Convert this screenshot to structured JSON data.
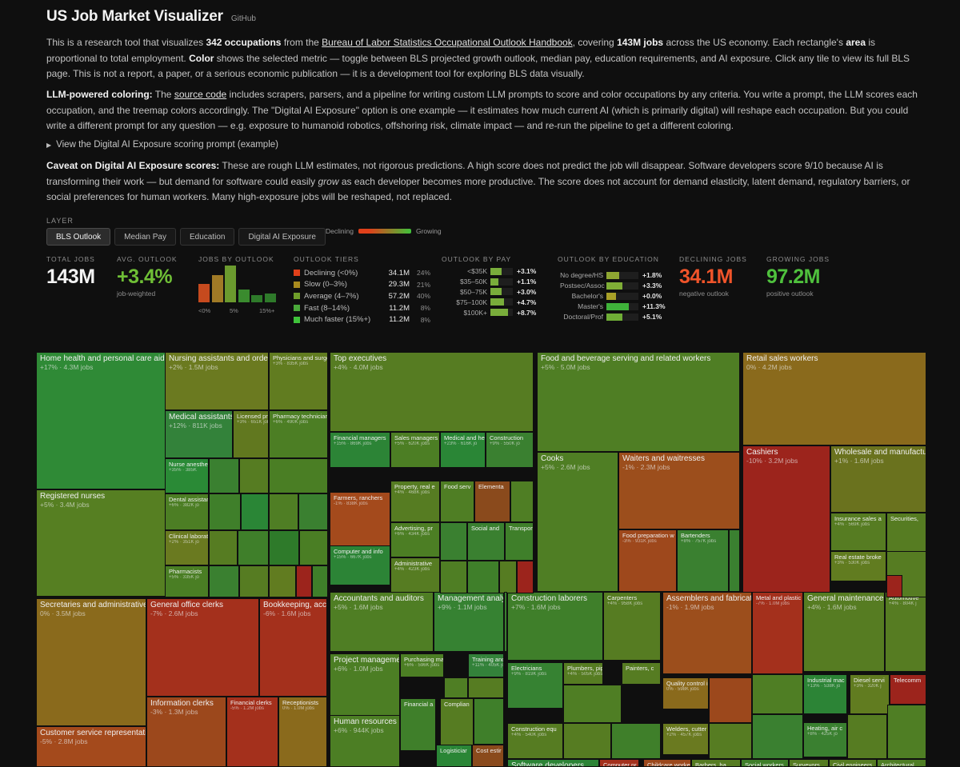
{
  "header": {
    "title": "US Job Market Visualizer",
    "github": "GitHub"
  },
  "intro": {
    "p1": "This is a research tool that visualizes",
    "p1_b1": "342 occupations",
    "p1_m1": "from the",
    "p1_link": "Bureau of Labor Statistics Occupational Outlook Handbook",
    "p1_m2": ", covering",
    "p1_b2": "143M jobs",
    "p1_m3": "across the US economy. Each rectangle's",
    "p1_b3": "area",
    "p1_m4": "is proportional to total employment.",
    "p1_b4": "Color",
    "p1_m5": "shows the selected metric — toggle between BLS projected growth outlook, median pay, education requirements, and AI exposure. Click any tile to view its full BLS page. This is not a report, a paper, or a serious economic publication — it is a development tool for exploring BLS data visually.",
    "p2_b": "LLM-powered coloring:",
    "p2_m1": "The",
    "p2_link": "source code",
    "p2_m2": "includes scrapers, parsers, and a pipeline for writing custom LLM prompts to score and color occupations by any criteria. You write a prompt, the LLM scores each occupation, and the treemap colors accordingly. The \"Digital AI Exposure\" option is one example — it estimates how much current AI (which is primarily digital) will reshape each occupation. But you could write a different prompt for any question — e.g. exposure to humanoid robotics, offshoring risk, climate impact — and re-run the pipeline to get a different coloring.",
    "disclosure": "View the Digital AI Exposure scoring prompt (example)",
    "p3_b": "Caveat on Digital AI Exposure scores:",
    "p3_m1": "These are rough LLM estimates, not rigorous predictions. A high score does not predict the job will disappear. Software developers score 9/10 because AI is transforming their work — but demand for software could easily",
    "p3_i": "grow",
    "p3_m2": "as each developer becomes more productive. The score does not account for demand elasticity, latent demand, regulatory barriers, or social preferences for human workers. Many high-exposure jobs will be reshaped, not replaced."
  },
  "layer": {
    "label": "LAYER",
    "buttons": [
      "BLS Outlook",
      "Median Pay",
      "Education",
      "Digital AI Exposure"
    ],
    "active": 0,
    "legend_low": "Declining",
    "legend_high": "Growing"
  },
  "stats": {
    "total_jobs_label": "TOTAL JOBS",
    "total_jobs": "143M",
    "avg_outlook_label": "AVG. OUTLOOK",
    "avg_outlook": "+3.4%",
    "avg_outlook_sub": "job-weighted",
    "by_outlook_label": "JOBS BY OUTLOOK",
    "tiers_label": "OUTLOOK TIERS",
    "pay_label": "OUTLOOK BY PAY",
    "edu_label": "OUTLOOK BY EDUCATION",
    "declining_label": "DECLINING JOBS",
    "declining": "34.1M",
    "declining_sub": "negative outlook",
    "growing_label": "GROWING JOBS",
    "growing": "97.2M",
    "growing_sub": "positive outlook"
  },
  "histogram": {
    "values": [
      0.5,
      0.75,
      1.0,
      0.35,
      0.2,
      0.25
    ],
    "colors": [
      "#c64a1e",
      "#a07a26",
      "#6b9a2e",
      "#3a8b2e",
      "#2e7a2a",
      "#2e7a2a"
    ],
    "ticks": [
      "<0%",
      "5%",
      "15%+"
    ]
  },
  "tiers": [
    {
      "name": "Declining (<0%)",
      "jobs": "34.1M",
      "pct": "24%",
      "color": "#e0401a"
    },
    {
      "name": "Slow (0–3%)",
      "jobs": "29.3M",
      "pct": "21%",
      "color": "#a88a1e"
    },
    {
      "name": "Average (4–7%)",
      "jobs": "57.2M",
      "pct": "40%",
      "color": "#6f9e2a"
    },
    {
      "name": "Fast (8–14%)",
      "jobs": "11.2M",
      "pct": "8%",
      "color": "#4aa83a"
    },
    {
      "name": "Much faster (15%+)",
      "jobs": "11.2M",
      "pct": "8%",
      "color": "#3fc23a"
    }
  ],
  "pay": [
    {
      "label": "<$35K",
      "value": "+3.1%",
      "fill": 0.5
    },
    {
      "label": "$35–50K",
      "value": "+1.1%",
      "fill": 0.35
    },
    {
      "label": "$50–75K",
      "value": "+3.0%",
      "fill": 0.5
    },
    {
      "label": "$75–100K",
      "value": "+4.7%",
      "fill": 0.6
    },
    {
      "label": "$100K+",
      "value": "+8.7%",
      "fill": 0.8
    }
  ],
  "education": [
    {
      "label": "No degree/HS",
      "value": "+1.8%",
      "fill": 0.4,
      "color": "#8fa632"
    },
    {
      "label": "Postsec/Assoc",
      "value": "+3.3%",
      "fill": 0.5,
      "color": "#7fae36"
    },
    {
      "label": "Bachelor's",
      "value": "+0.0%",
      "fill": 0.3,
      "color": "#a8a028"
    },
    {
      "label": "Master's",
      "value": "+11.3%",
      "fill": 0.7,
      "color": "#3fb23a"
    },
    {
      "label": "Doctoral/Prof",
      "value": "+5.1%",
      "fill": 0.5,
      "color": "#6fae36"
    }
  ],
  "tiles": [
    {
      "name": "Home health and personal care aides",
      "sub": "+17% · 4.3M jobs",
      "color": "#2f8a36"
    },
    {
      "name": "Registered nurses",
      "sub": "+5% · 3.4M jobs",
      "color": "#567f22"
    },
    {
      "name": "Nursing assistants and orderlies",
      "sub": "+2% · 1.5M jobs",
      "color": "#6b7a20"
    },
    {
      "name": "Physicians and surgeons",
      "sub": "+3% · 835K jobs",
      "color": "#617c20"
    },
    {
      "name": "Medical assistants",
      "sub": "+12% · 811K jobs",
      "color": "#33823a"
    },
    {
      "name": "Licensed practical nurses",
      "sub": "+3% · 651K jobs",
      "color": "#61781f"
    },
    {
      "name": "Pharmacy technicians",
      "sub": "+6% · 490K jobs",
      "color": "#4c7e24"
    },
    {
      "name": "Nurse anesthetists",
      "sub": "+35% · 385K",
      "color": "#2a8a36"
    },
    {
      "name": "Dental assistants",
      "sub": "+6% · 382K jo",
      "color": "#4c7e24"
    },
    {
      "name": "Clinical laboratory",
      "sub": "+2% · 351K jo",
      "color": "#6a7a20"
    },
    {
      "name": "Pharmacists",
      "sub": "+5% · 335K jo",
      "color": "#4a7e24"
    },
    {
      "name": "Top executives",
      "sub": "+4% · 4.0M jobs",
      "color": "#567c22"
    },
    {
      "name": "Financial managers",
      "sub": "+15% · 869K jobs",
      "color": "#2c8436"
    },
    {
      "name": "Sales managers",
      "sub": "+5% · 620K jobs",
      "color": "#4c7e24"
    },
    {
      "name": "Medical and health",
      "sub": "+23% · 616K jo",
      "color": "#2a8636"
    },
    {
      "name": "Construction",
      "sub": "+9% · 550K jo",
      "color": "#3a8030"
    },
    {
      "name": "Farmers, ranchers",
      "sub": "-1% · 838K jobs",
      "color": "#a44a1c"
    },
    {
      "name": "Property, real e",
      "sub": "+4% · 468K jobs",
      "color": "#567c22"
    },
    {
      "name": "Food serv",
      "sub": "",
      "color": "#4f7e24"
    },
    {
      "name": "Elementa",
      "sub": "",
      "color": "#8a4a1c"
    },
    {
      "name": "Advertising, pr",
      "sub": "+6% · 434K jobs",
      "color": "#4c7e24"
    },
    {
      "name": "Social and",
      "sub": "",
      "color": "#3a8030"
    },
    {
      "name": "Transport",
      "sub": "",
      "color": "#3f7f2a"
    },
    {
      "name": "Computer and info",
      "sub": "+15% · 667K jobs",
      "color": "#2c8436"
    },
    {
      "name": "Administrative",
      "sub": "+4% · 423K jobs",
      "color": "#567c22"
    },
    {
      "name": "Food and beverage serving and related workers",
      "sub": "+5% · 5.0M jobs",
      "color": "#4f7e24"
    },
    {
      "name": "Cooks",
      "sub": "+5% · 2.6M jobs",
      "color": "#4f7e24"
    },
    {
      "name": "Waiters and waitresses",
      "sub": "-1% · 2.3M jobs",
      "color": "#9c4e1c"
    },
    {
      "name": "Food preparation w",
      "sub": "-3% · 931K jobs",
      "color": "#9e481c"
    },
    {
      "name": "Bartenders",
      "sub": "+8% · 757K jobs",
      "color": "#3a8030"
    },
    {
      "name": "Retail sales workers",
      "sub": "0% · 4.2M jobs",
      "color": "#8a6a1c"
    },
    {
      "name": "Cashiers",
      "sub": "-10% · 3.2M jobs",
      "color": "#9c241c"
    },
    {
      "name": "Wholesale and manufacturing sales",
      "sub": "+1% · 1.6M jobs",
      "color": "#6a721e"
    },
    {
      "name": "Insurance sales a",
      "sub": "+4% · 569K jobs",
      "color": "#567c22"
    },
    {
      "name": "Securities,",
      "sub": "",
      "color": "#567c22"
    },
    {
      "name": "Real estate broke",
      "sub": "+3% · 530K jobs",
      "color": "#617c20"
    },
    {
      "name": "Secretaries and administrative assistants",
      "sub": "0% · 3.5M jobs",
      "color": "#8a6a1c"
    },
    {
      "name": "Customer service representatives",
      "sub": "-5% · 2.8M jobs",
      "color": "#a44a1c"
    },
    {
      "name": "General office clerks",
      "sub": "-7% · 2.6M jobs",
      "color": "#a4301c"
    },
    {
      "name": "Bookkeeping, accounting",
      "sub": "-6% · 1.6M jobs",
      "color": "#a4301c"
    },
    {
      "name": "Information clerks",
      "sub": "-3% · 1.3M jobs",
      "color": "#9c481c"
    },
    {
      "name": "Financial clerks",
      "sub": "-5% · 1.2M jobs",
      "color": "#a4301c"
    },
    {
      "name": "Receptionists",
      "sub": "0% · 1.0M jobs",
      "color": "#8a6a1c"
    },
    {
      "name": "Accountants and auditors",
      "sub": "+5% · 1.6M jobs",
      "color": "#4f7e24"
    },
    {
      "name": "Management analysts",
      "sub": "+9% · 1.1M jobs",
      "color": "#368232"
    },
    {
      "name": "Project management",
      "sub": "+6% · 1.0M jobs",
      "color": "#4c7e24"
    },
    {
      "name": "Purchasing manag",
      "sub": "+6% · 596K jobs",
      "color": "#4c7e24"
    },
    {
      "name": "Training and",
      "sub": "+11% · 405K jo",
      "color": "#33823a"
    },
    {
      "name": "Human resources s",
      "sub": "+6% · 944K jobs",
      "color": "#4c7e24"
    },
    {
      "name": "Financial a",
      "sub": "",
      "color": "#3f7f2a"
    },
    {
      "name": "Complian",
      "sub": "",
      "color": "#567c22"
    },
    {
      "name": "Logisticiar",
      "sub": "",
      "color": "#2a8636"
    },
    {
      "name": "Cost estir",
      "sub": "",
      "color": "#8a4a1c"
    },
    {
      "name": "Construction laborers",
      "sub": "+7% · 1.6M jobs",
      "color": "#3f7f2a"
    },
    {
      "name": "Carpenters",
      "sub": "+4% · 958K jobs",
      "color": "#567c22"
    },
    {
      "name": "Electricians",
      "sub": "+9% · 819K jobs",
      "color": "#368232"
    },
    {
      "name": "Plumbers, pipefit",
      "sub": "+4% · 505K jobs",
      "color": "#567c22"
    },
    {
      "name": "Painters, c",
      "sub": "",
      "color": "#567c22"
    },
    {
      "name": "Construction equ",
      "sub": "+4% · 540K jobs",
      "color": "#567c22"
    },
    {
      "name": "Assemblers and fabricators",
      "sub": "-1% · 1.9M jobs",
      "color": "#9c4e1c"
    },
    {
      "name": "Metal and plastic",
      "sub": "-7% · 1.0M jobs",
      "color": "#a4301c"
    },
    {
      "name": "Quality control i",
      "sub": "0% · 598K jobs",
      "color": "#8a6a1c"
    },
    {
      "name": "Welders, cutter",
      "sub": "+2% · 457K jobs",
      "color": "#6a7a20"
    },
    {
      "name": "General maintenance",
      "sub": "+4% · 1.6M jobs",
      "color": "#567c22"
    },
    {
      "name": "Automotive",
      "sub": "+4% · 804K j",
      "color": "#567c22"
    },
    {
      "name": "Industrial mac",
      "sub": "+13% · 538K jo",
      "color": "#2c8436"
    },
    {
      "name": "Diesel servi",
      "sub": "+3% · 320K j",
      "color": "#617c20"
    },
    {
      "name": "Telecomm",
      "sub": "",
      "color": "#9c241c"
    },
    {
      "name": "Heating, air c",
      "sub": "+8% · 425K jo",
      "color": "#3a8030"
    },
    {
      "name": "Software developers",
      "sub": "",
      "color": "#2c8436"
    },
    {
      "name": "Computer pr",
      "sub": "",
      "color": "#a4301c"
    },
    {
      "name": "Childcare workers",
      "sub": "",
      "color": "#9c481c"
    },
    {
      "name": "Barbers, ha",
      "sub": "",
      "color": "#567c22"
    },
    {
      "name": "Social workers",
      "sub": "",
      "color": "#3f7f2a"
    },
    {
      "name": "Surveyors",
      "sub": "",
      "color": "#567c22"
    },
    {
      "name": "Civil engineers",
      "sub": "",
      "color": "#567c22"
    },
    {
      "name": "Architectural",
      "sub": "",
      "color": "#4f7e24"
    }
  ]
}
